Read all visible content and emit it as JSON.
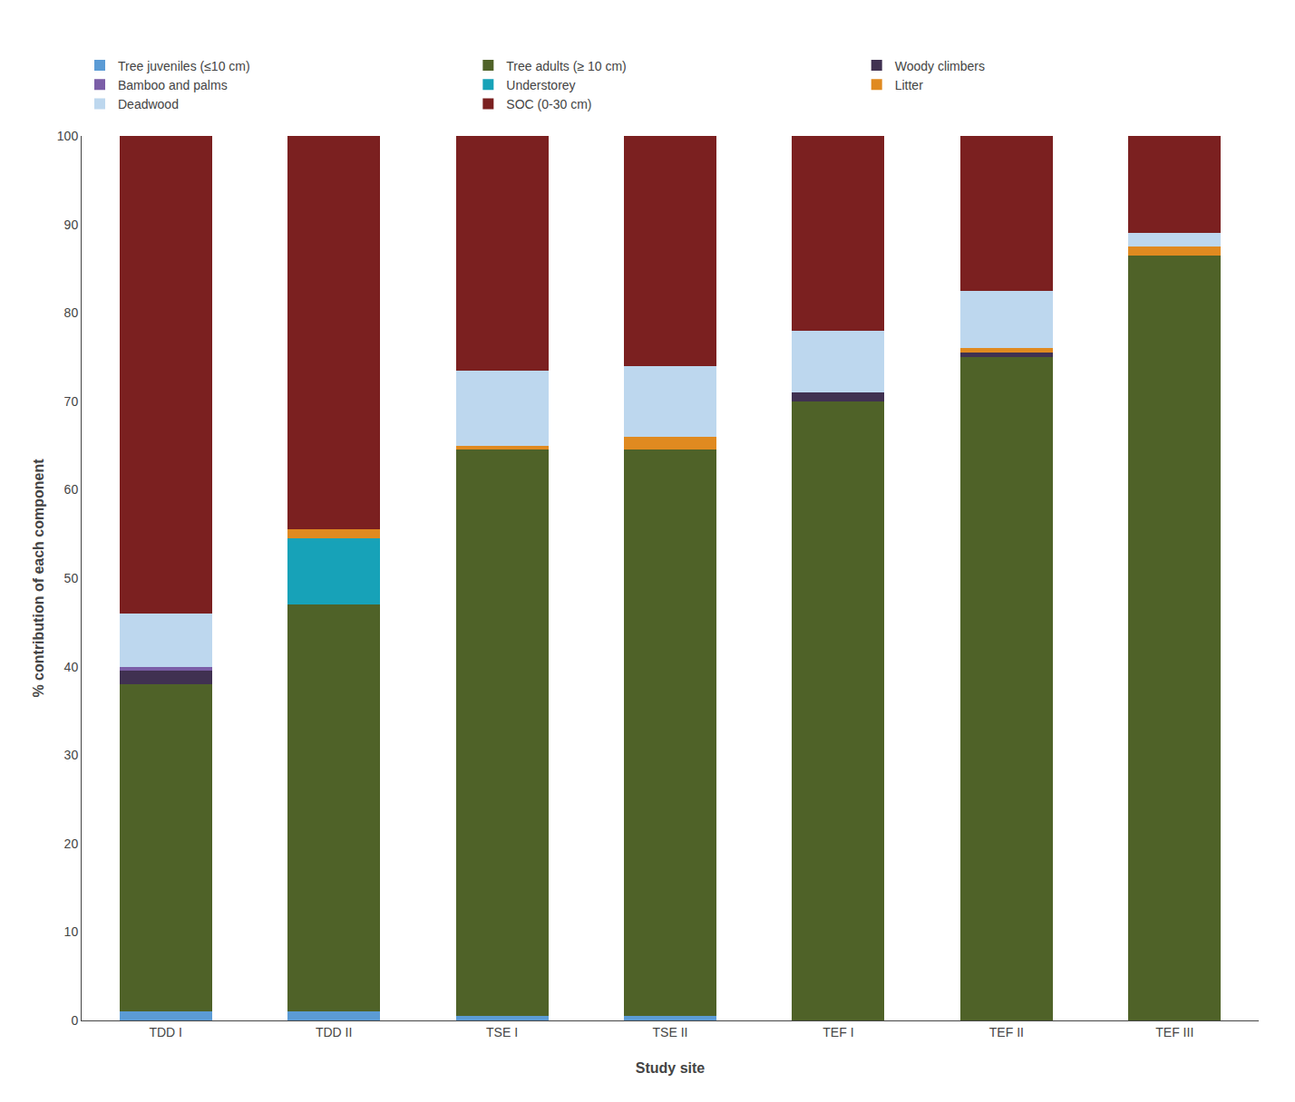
{
  "chart_data": {
    "type": "bar",
    "stacked": true,
    "categories": [
      "TDD I",
      "TDD II",
      "TSE I",
      "TSE II",
      "TEF I",
      "TEF II",
      "TEF III"
    ],
    "series": [
      {
        "name": "Tree juveniles (≤10 cm)",
        "color": "#5B9BD5",
        "values": [
          1.0,
          1.0,
          0.5,
          0.5,
          0.0,
          0.0,
          0.0
        ]
      },
      {
        "name": "Tree adults (≥ 10 cm)",
        "color": "#4F6228",
        "values": [
          37.0,
          46.0,
          64.0,
          64.0,
          70.0,
          75.0,
          86.5
        ]
      },
      {
        "name": "Woody climbers",
        "color": "#403151",
        "values": [
          1.5,
          0.0,
          0.0,
          0.0,
          1.0,
          0.5,
          0.0
        ]
      },
      {
        "name": "Bamboo and palms",
        "color": "#7B5EA7",
        "values": [
          0.5,
          0.0,
          0.0,
          0.0,
          0.0,
          0.0,
          0.0
        ]
      },
      {
        "name": "Understorey",
        "color": "#17A2B8",
        "values": [
          0.0,
          7.5,
          0.0,
          0.0,
          0.0,
          0.0,
          0.0
        ]
      },
      {
        "name": "Litter",
        "color": "#E08A20",
        "values": [
          0.0,
          1.0,
          0.5,
          1.5,
          0.0,
          0.5,
          1.0
        ]
      },
      {
        "name": "Deadwood",
        "color": "#BDD7EE",
        "values": [
          6.0,
          0.0,
          8.5,
          8.0,
          7.0,
          6.5,
          1.5
        ]
      },
      {
        "name": "SOC (0-30 cm)",
        "color": "#7B2020",
        "values": [
          54.0,
          44.5,
          26.5,
          26.0,
          22.0,
          17.5,
          11.0
        ]
      }
    ],
    "xlabel": "Study site",
    "ylabel": "% contribution of each component",
    "ylim": [
      0,
      100
    ],
    "yticks": [
      0,
      10,
      20,
      30,
      40,
      50,
      60,
      70,
      80,
      90,
      100
    ],
    "grid": false,
    "legend": "upper left"
  }
}
